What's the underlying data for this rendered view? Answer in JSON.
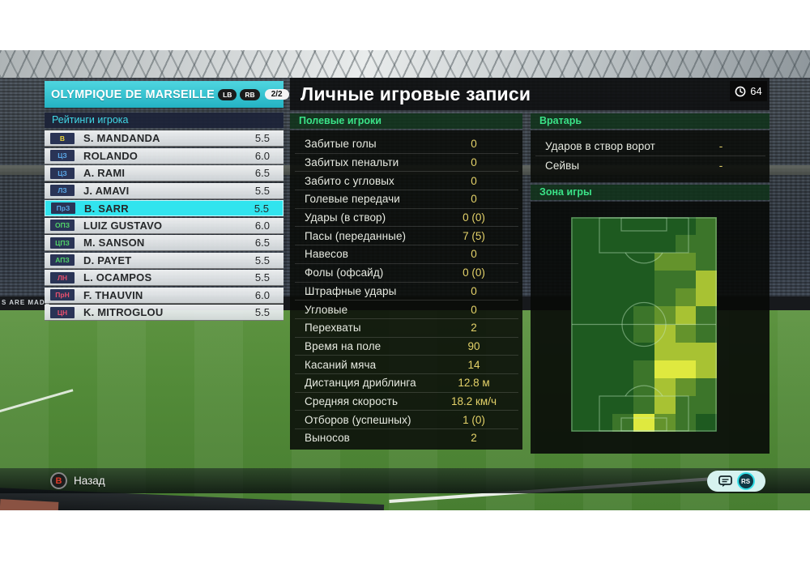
{
  "background": {
    "ad_text": "S ARE MADE"
  },
  "team_panel": {
    "title": "OLYMPIQUE DE MARSEILLE",
    "lb_label": "LB",
    "rb_label": "RB",
    "page_indicator": "2/2",
    "section_title": "Рейтинги игрока",
    "players": [
      {
        "pos": "В",
        "pos_color": "#e8d23c",
        "name": "S. MANDANDA",
        "rating": "5.5",
        "selected": false
      },
      {
        "pos": "ЦЗ",
        "pos_color": "#5aa8e8",
        "name": "ROLANDO",
        "rating": "6.0",
        "selected": false
      },
      {
        "pos": "ЦЗ",
        "pos_color": "#5aa8e8",
        "name": "A. RAMI",
        "rating": "6.5",
        "selected": false
      },
      {
        "pos": "ЛЗ",
        "pos_color": "#5aa8e8",
        "name": "J. AMAVI",
        "rating": "5.5",
        "selected": false
      },
      {
        "pos": "ПрЗ",
        "pos_color": "#5aa8e8",
        "name": "B. SARR",
        "rating": "5.5",
        "selected": true
      },
      {
        "pos": "ОПЗ",
        "pos_color": "#52d469",
        "name": "LUIZ GUSTAVO",
        "rating": "6.0",
        "selected": false
      },
      {
        "pos": "ЦПЗ",
        "pos_color": "#52d469",
        "name": "M. SANSON",
        "rating": "6.5",
        "selected": false
      },
      {
        "pos": "АПЗ",
        "pos_color": "#52d469",
        "name": "D. PAYET",
        "rating": "5.5",
        "selected": false
      },
      {
        "pos": "ЛН",
        "pos_color": "#e8506e",
        "name": "L. OCAMPOS",
        "rating": "5.5",
        "selected": false
      },
      {
        "pos": "ПрН",
        "pos_color": "#e8506e",
        "name": "F. THAUVIN",
        "rating": "6.0",
        "selected": false
      },
      {
        "pos": "ЦН",
        "pos_color": "#e8506e",
        "name": "K. MITROGLOU",
        "rating": "5.5",
        "selected": false
      }
    ]
  },
  "main_panel": {
    "title": "Личные игровые записи",
    "clock_value": "64",
    "field_players": {
      "header": "Полевые игроки",
      "rows": [
        {
          "label": "Забитые голы",
          "value": "0"
        },
        {
          "label": "Забитых пенальти",
          "value": "0"
        },
        {
          "label": "Забито с угловых",
          "value": "0"
        },
        {
          "label": "Голевые передачи",
          "value": "0"
        },
        {
          "label": "Удары (в створ)",
          "value": "0 (0)"
        },
        {
          "label": "Пасы (переданные)",
          "value": "7 (5)"
        },
        {
          "label": "Навесов",
          "value": "0"
        },
        {
          "label": "Фолы (офсайд)",
          "value": "0 (0)"
        },
        {
          "label": "Штрафные удары",
          "value": "0"
        },
        {
          "label": "Угловые",
          "value": "0"
        },
        {
          "label": "Перехваты",
          "value": "2"
        },
        {
          "label": "Время на поле",
          "value": "90"
        },
        {
          "label": "Касаний мяча",
          "value": "14"
        },
        {
          "label": "Дистанция дриблинга",
          "value": "12.8 м"
        },
        {
          "label": "Средняя скорость",
          "value": "18.2 км/ч"
        },
        {
          "label": "Отборов (успешных)",
          "value": "1 (0)"
        },
        {
          "label": "Выносов",
          "value": "2"
        }
      ]
    },
    "goalkeeper": {
      "header": "Вратарь",
      "rows": [
        {
          "label": "Ударов в створ ворот",
          "value": "-"
        },
        {
          "label": "Сейвы",
          "value": "-"
        }
      ]
    },
    "zone": {
      "header": "Зона игры",
      "heatmap": {
        "palette": [
          "#1e5a20",
          "#3c752a",
          "#64932c",
          "#a8c233",
          "#dfe93f"
        ],
        "grid": [
          [
            0,
            0,
            0,
            0,
            0,
            0,
            1
          ],
          [
            0,
            0,
            0,
            0,
            0,
            1,
            1
          ],
          [
            0,
            0,
            0,
            0,
            2,
            2,
            1
          ],
          [
            0,
            0,
            0,
            0,
            1,
            1,
            3
          ],
          [
            0,
            0,
            0,
            0,
            1,
            2,
            3
          ],
          [
            0,
            0,
            0,
            1,
            2,
            3,
            1
          ],
          [
            0,
            0,
            0,
            1,
            3,
            2,
            1
          ],
          [
            0,
            0,
            0,
            0,
            3,
            3,
            3
          ],
          [
            0,
            0,
            0,
            1,
            4,
            4,
            3
          ],
          [
            0,
            0,
            0,
            1,
            3,
            2,
            1
          ],
          [
            0,
            0,
            0,
            1,
            3,
            1,
            1
          ],
          [
            0,
            0,
            1,
            4,
            2,
            1,
            0
          ]
        ]
      }
    }
  },
  "footer": {
    "back_button": "B",
    "back_label": "Назад",
    "stick_label": "RS"
  },
  "colors": {
    "accent_cyan": "#31e4ee",
    "header_teal": "#2cbcca",
    "section_green": "#3ae287",
    "stat_value_gold": "#e4d269",
    "badge_bg": "#2a3456"
  }
}
